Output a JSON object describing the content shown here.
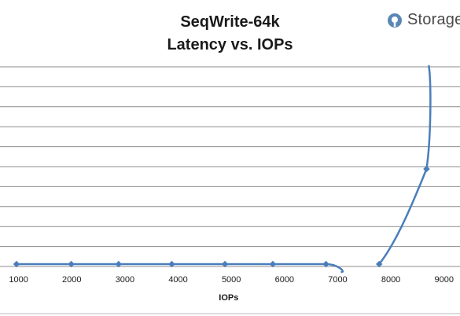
{
  "chart_data": {
    "type": "line",
    "title_lines": [
      "SeqWrite-64k",
      "Latency vs. IOPs"
    ],
    "xlabel": "IOPs",
    "ylabel": "",
    "xticks": [
      1000,
      2000,
      3000,
      4000,
      5000,
      6000,
      7000,
      8000,
      9000
    ],
    "xlim": [
      650,
      9300
    ],
    "grid": true,
    "legend": "none",
    "series": [
      {
        "color": "#4a7ebb",
        "points": [
          [
            960,
            1
          ],
          [
            1990,
            1
          ],
          [
            2880,
            1
          ],
          [
            3880,
            1
          ],
          [
            4880,
            1
          ],
          [
            5780,
            1
          ],
          [
            6780,
            1
          ],
          [
            7780,
            1
          ],
          [
            8670,
            48
          ]
        ]
      }
    ]
  },
  "brand": {
    "name": "Storage",
    "icon": "storagereview-logo-icon",
    "color": "#4a7ebb"
  }
}
